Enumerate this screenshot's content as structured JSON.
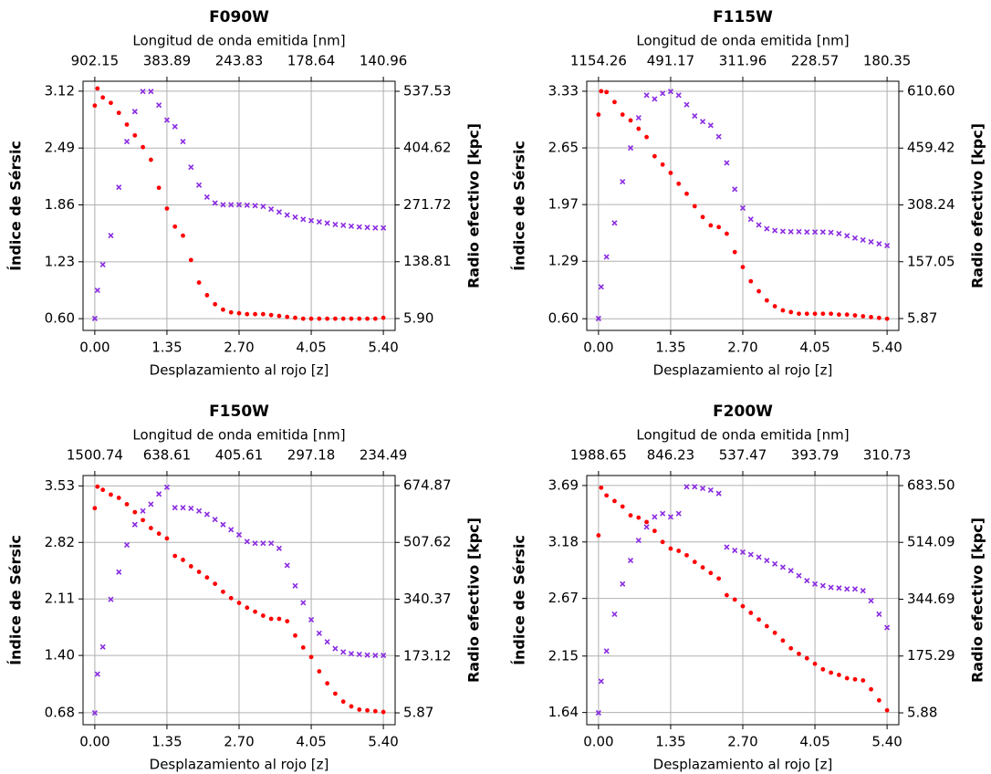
{
  "chart_data": [
    {
      "type": "scatter",
      "title": "F090W",
      "x2label": "Longitud de onda emitida [nm]",
      "xlabel": "Desplazamiento al rojo [z]",
      "ylabel": "Índice de Sérsic",
      "y2label": "Radio efectivo [kpc]",
      "x": [
        0,
        0.05,
        0.15,
        0.3,
        0.45,
        0.6,
        0.75,
        0.9,
        1.05,
        1.2,
        1.35,
        1.5,
        1.65,
        1.8,
        1.95,
        2.1,
        2.25,
        2.4,
        2.55,
        2.7,
        2.85,
        3.0,
        3.15,
        3.3,
        3.45,
        3.6,
        3.75,
        3.9,
        4.05,
        4.2,
        4.35,
        4.5,
        4.65,
        4.8,
        4.95,
        5.1,
        5.25,
        5.4
      ],
      "xlim": [
        -0.22,
        5.62
      ],
      "xticks": [
        {
          "value": 0,
          "label": "0.00"
        },
        1.35,
        {
          "value": 2.7,
          "label": "2.70"
        },
        4.05,
        {
          "value": 5.4,
          "label": "5.40"
        }
      ],
      "x2ticks": [
        902.15,
        383.89,
        243.83,
        178.64,
        140.96
      ],
      "ylim": [
        0.47,
        3.23
      ],
      "yticks": [
        {
          "value": 0.6,
          "label": "0.60"
        },
        1.23,
        1.86,
        2.49,
        3.12
      ],
      "y2lim": [
        -21.9,
        561
      ],
      "y2ticks": [
        {
          "value": 5.9,
          "label": "5.90"
        },
        138.81,
        271.72,
        404.62,
        537.53
      ],
      "grid": true,
      "series": [
        {
          "color": "#ff0000",
          "marker": "dot",
          "axis": "y",
          "values": [
            2.96,
            3.15,
            3.05,
            2.99,
            2.88,
            2.75,
            2.63,
            2.5,
            2.36,
            2.05,
            1.82,
            1.62,
            1.52,
            1.25,
            1.0,
            0.86,
            0.76,
            0.7,
            0.67,
            0.66,
            0.65,
            0.65,
            0.65,
            0.64,
            0.63,
            0.62,
            0.61,
            0.6,
            0.6,
            0.6,
            0.6,
            0.6,
            0.6,
            0.6,
            0.6,
            0.6,
            0.6,
            0.61
          ]
        },
        {
          "color": "#8a2be2",
          "marker": "x",
          "axis": "y2",
          "values": [
            5.9,
            72,
            132,
            200,
            313,
            420,
            490,
            537,
            537,
            505,
            470,
            455,
            420,
            360,
            318,
            290,
            276,
            272,
            272,
            272,
            271,
            270,
            268,
            262,
            255,
            248,
            243,
            238,
            235,
            232,
            229,
            226,
            224,
            222,
            220,
            219,
            218,
            218
          ]
        }
      ]
    },
    {
      "type": "scatter",
      "title": "F115W",
      "x2label": "Longitud de onda emitida [nm]",
      "xlabel": "Desplazamiento al rojo [z]",
      "ylabel": "Índice de Sérsic",
      "y2label": "Radio efectivo [kpc]",
      "x": [
        0,
        0.05,
        0.15,
        0.3,
        0.45,
        0.6,
        0.75,
        0.9,
        1.05,
        1.2,
        1.35,
        1.5,
        1.65,
        1.8,
        1.95,
        2.1,
        2.25,
        2.4,
        2.55,
        2.7,
        2.85,
        3.0,
        3.15,
        3.3,
        3.45,
        3.6,
        3.75,
        3.9,
        4.05,
        4.2,
        4.35,
        4.5,
        4.65,
        4.8,
        4.95,
        5.1,
        5.25,
        5.4
      ],
      "xlim": [
        -0.22,
        5.62
      ],
      "xticks": [
        {
          "value": 0,
          "label": "0.00"
        },
        1.35,
        {
          "value": 2.7,
          "label": "2.70"
        },
        4.05,
        {
          "value": 5.4,
          "label": "5.40"
        }
      ],
      "x2ticks": [
        1154.26,
        491.17,
        311.96,
        228.57,
        180.35
      ],
      "ylim": [
        0.46,
        3.45
      ],
      "yticks": [
        {
          "value": 0.6,
          "label": "0.60"
        },
        1.29,
        1.97,
        2.65,
        3.33
      ],
      "y2lim": [
        -25.7,
        637.3
      ],
      "y2ticks": [
        5.87,
        157.05,
        308.24,
        459.42,
        {
          "value": 610.6,
          "label": "610.60"
        }
      ],
      "grid": true,
      "series": [
        {
          "color": "#ff0000",
          "marker": "dot",
          "axis": "y",
          "values": [
            3.05,
            3.33,
            3.32,
            3.2,
            3.05,
            2.98,
            2.88,
            2.78,
            2.55,
            2.45,
            2.35,
            2.22,
            2.1,
            1.95,
            1.82,
            1.72,
            1.7,
            1.62,
            1.4,
            1.22,
            1.05,
            0.93,
            0.82,
            0.75,
            0.7,
            0.68,
            0.66,
            0.66,
            0.66,
            0.66,
            0.66,
            0.65,
            0.65,
            0.64,
            0.63,
            0.62,
            0.61,
            0.6
          ]
        },
        {
          "color": "#8a2be2",
          "marker": "x",
          "axis": "y2",
          "values": [
            5.87,
            90,
            170,
            260,
            370,
            460,
            540,
            600,
            590,
            605,
            610,
            600,
            575,
            545,
            530,
            520,
            490,
            420,
            350,
            300,
            270,
            255,
            245,
            240,
            238,
            237,
            237,
            236,
            236,
            236,
            235,
            232,
            226,
            220,
            215,
            210,
            205,
            200
          ]
        }
      ]
    },
    {
      "type": "scatter",
      "title": "F150W",
      "x2label": "Longitud de onda emitida [nm]",
      "xlabel": "Desplazamiento al rojo [z]",
      "ylabel": "Índice de Sérsic",
      "y2label": "Radio efectivo [kpc]",
      "x": [
        0,
        0.05,
        0.15,
        0.3,
        0.45,
        0.6,
        0.75,
        0.9,
        1.05,
        1.2,
        1.35,
        1.5,
        1.65,
        1.8,
        1.95,
        2.1,
        2.25,
        2.4,
        2.55,
        2.7,
        2.85,
        3.0,
        3.15,
        3.3,
        3.45,
        3.6,
        3.75,
        3.9,
        4.05,
        4.2,
        4.35,
        4.5,
        4.65,
        4.8,
        4.95,
        5.1,
        5.25,
        5.4
      ],
      "xlim": [
        -0.22,
        5.62
      ],
      "xticks": [
        {
          "value": 0,
          "label": "0.00"
        },
        1.35,
        {
          "value": 2.7,
          "label": "2.70"
        },
        4.05,
        {
          "value": 5.4,
          "label": "5.40"
        }
      ],
      "x2ticks": [
        1500.74,
        638.61,
        405.61,
        297.18,
        234.49
      ],
      "ylim": [
        0.53,
        3.66
      ],
      "yticks": [
        0.68,
        {
          "value": 1.4,
          "label": "1.40"
        },
        2.11,
        2.82,
        3.53
      ],
      "y2lim": [
        -29,
        704.4
      ],
      "y2ticks": [
        5.87,
        173.12,
        340.37,
        507.62,
        674.87
      ],
      "grid": true,
      "series": [
        {
          "color": "#ff0000",
          "marker": "dot",
          "axis": "y",
          "values": [
            3.25,
            3.52,
            3.48,
            3.42,
            3.38,
            3.3,
            3.2,
            3.1,
            3.0,
            2.93,
            2.87,
            2.65,
            2.6,
            2.52,
            2.45,
            2.38,
            2.3,
            2.2,
            2.12,
            2.06,
            2.0,
            1.95,
            1.9,
            1.86,
            1.86,
            1.83,
            1.65,
            1.5,
            1.38,
            1.2,
            1.05,
            0.92,
            0.82,
            0.76,
            0.72,
            0.71,
            0.7,
            0.69
          ]
        },
        {
          "color": "#8a2be2",
          "marker": "x",
          "axis": "y2",
          "values": [
            5.87,
            120,
            200,
            340,
            420,
            500,
            560,
            600,
            620,
            650,
            670,
            610,
            610,
            608,
            600,
            590,
            575,
            560,
            545,
            530,
            510,
            505,
            505,
            505,
            490,
            440,
            380,
            330,
            280,
            240,
            215,
            195,
            185,
            180,
            178,
            176,
            175,
            175
          ]
        }
      ]
    },
    {
      "type": "scatter",
      "title": "F200W",
      "x2label": "Longitud de onda emitida [nm]",
      "xlabel": "Desplazamiento al rojo [z]",
      "ylabel": "Índice de Sérsic",
      "y2label": "Radio efectivo [kpc]",
      "x": [
        0,
        0.05,
        0.15,
        0.3,
        0.45,
        0.6,
        0.75,
        0.9,
        1.05,
        1.2,
        1.35,
        1.5,
        1.65,
        1.8,
        1.95,
        2.1,
        2.25,
        2.4,
        2.55,
        2.7,
        2.85,
        3.0,
        3.15,
        3.3,
        3.45,
        3.6,
        3.75,
        3.9,
        4.05,
        4.2,
        4.35,
        4.5,
        4.65,
        4.8,
        4.95,
        5.1,
        5.25,
        5.4
      ],
      "xlim": [
        -0.22,
        5.62
      ],
      "xticks": [
        {
          "value": 0,
          "label": "0.00"
        },
        1.35,
        {
          "value": 2.7,
          "label": "2.70"
        },
        4.05,
        {
          "value": 5.4,
          "label": "5.40"
        }
      ],
      "x2ticks": [
        1988.65,
        846.23,
        537.47,
        393.79,
        310.73
      ],
      "ylim": [
        1.53,
        3.78
      ],
      "yticks": [
        1.64,
        2.15,
        2.67,
        3.18,
        3.69
      ],
      "y2lim": [
        -29.5,
        713.4
      ],
      "y2ticks": [
        5.88,
        175.29,
        344.69,
        514.09,
        {
          "value": 683.5,
          "label": "683.50"
        }
      ],
      "grid": true,
      "series": [
        {
          "color": "#ff0000",
          "marker": "dot",
          "axis": "y",
          "values": [
            3.24,
            3.67,
            3.6,
            3.55,
            3.5,
            3.42,
            3.4,
            3.36,
            3.28,
            3.18,
            3.12,
            3.1,
            3.06,
            3.0,
            2.95,
            2.9,
            2.85,
            2.7,
            2.66,
            2.6,
            2.54,
            2.48,
            2.42,
            2.36,
            2.29,
            2.22,
            2.17,
            2.13,
            2.08,
            2.03,
            2.0,
            1.98,
            1.95,
            1.94,
            1.93,
            1.85,
            1.75,
            1.66
          ]
        },
        {
          "color": "#8a2be2",
          "marker": "x",
          "axis": "y2",
          "values": [
            5.88,
            100,
            190,
            300,
            390,
            460,
            520,
            560,
            590,
            600,
            590,
            600,
            680,
            680,
            675,
            670,
            660,
            500,
            490,
            485,
            478,
            470,
            460,
            450,
            440,
            430,
            415,
            400,
            390,
            385,
            380,
            378,
            375,
            375,
            370,
            340,
            300,
            260
          ]
        }
      ]
    }
  ]
}
